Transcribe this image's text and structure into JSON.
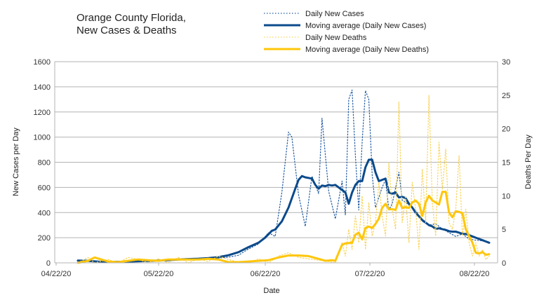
{
  "chart_data": {
    "type": "line",
    "title_lines": [
      "Orange County Florida,",
      "New Cases & Deaths"
    ],
    "xlabel": "Date",
    "ylabel_left": "New Cases per Day",
    "ylabel_right": "Deaths Per Day",
    "x_ticks": [
      "04/22/20",
      "05/22/20",
      "06/22/20",
      "07/22/20",
      "08/22/20"
    ],
    "ylim_left": [
      0,
      1600
    ],
    "y_ticks_left": [
      "0",
      "200",
      "400",
      "600",
      "800",
      "1000",
      "1200",
      "1400",
      "1600"
    ],
    "ylim_right": [
      0,
      30
    ],
    "y_ticks_right": [
      "0",
      "5",
      "10",
      "15",
      "20",
      "25",
      "30"
    ],
    "grid": "horizontal",
    "legend_position": "top",
    "series": [
      {
        "name": "Daily New Cases",
        "axis": "left",
        "style": "dotted",
        "color": "#1f5aa0",
        "points": [
          [
            0,
            18
          ],
          [
            3,
            22
          ],
          [
            6,
            12
          ],
          [
            9,
            10
          ],
          [
            12,
            8
          ],
          [
            15,
            12
          ],
          [
            18,
            10
          ],
          [
            21,
            14
          ],
          [
            24,
            16
          ],
          [
            27,
            22
          ],
          [
            30,
            25
          ],
          [
            33,
            28
          ],
          [
            36,
            30
          ],
          [
            39,
            32
          ],
          [
            42,
            38
          ],
          [
            45,
            45
          ],
          [
            48,
            60
          ],
          [
            51,
            110
          ],
          [
            54,
            150
          ],
          [
            57,
            240
          ],
          [
            59,
            210
          ],
          [
            61,
            560
          ],
          [
            63,
            1040
          ],
          [
            64,
            1000
          ],
          [
            66,
            540
          ],
          [
            68,
            290
          ],
          [
            70,
            690
          ],
          [
            72,
            550
          ],
          [
            73,
            1150
          ],
          [
            75,
            570
          ],
          [
            77,
            350
          ],
          [
            79,
            650
          ],
          [
            80,
            380
          ],
          [
            81,
            1300
          ],
          [
            82,
            1375
          ],
          [
            83,
            850
          ],
          [
            84,
            420
          ],
          [
            85,
            960
          ],
          [
            86,
            1370
          ],
          [
            87,
            1300
          ],
          [
            88,
            700
          ],
          [
            89,
            440
          ],
          [
            90,
            520
          ],
          [
            91,
            600
          ],
          [
            92,
            660
          ],
          [
            93,
            420
          ],
          [
            94,
            470
          ],
          [
            96,
            720
          ],
          [
            97,
            500
          ],
          [
            99,
            460
          ],
          [
            101,
            420
          ],
          [
            103,
            330
          ],
          [
            105,
            300
          ],
          [
            107,
            310
          ],
          [
            109,
            270
          ],
          [
            111,
            240
          ],
          [
            113,
            210
          ],
          [
            115,
            230
          ],
          [
            117,
            190
          ],
          [
            119,
            180
          ],
          [
            121,
            175
          ],
          [
            123,
            160
          ]
        ]
      },
      {
        "name": "Moving average (Daily New Cases)",
        "axis": "left",
        "style": "solid",
        "color": "#0b4a8b",
        "points": [
          [
            0,
            18
          ],
          [
            3,
            16
          ],
          [
            6,
            10
          ],
          [
            9,
            8
          ],
          [
            12,
            8
          ],
          [
            15,
            10
          ],
          [
            18,
            12
          ],
          [
            21,
            15
          ],
          [
            24,
            18
          ],
          [
            27,
            22
          ],
          [
            30,
            26
          ],
          [
            33,
            30
          ],
          [
            36,
            33
          ],
          [
            39,
            38
          ],
          [
            42,
            45
          ],
          [
            45,
            60
          ],
          [
            48,
            85
          ],
          [
            51,
            125
          ],
          [
            54,
            160
          ],
          [
            56,
            200
          ],
          [
            58,
            255
          ],
          [
            59,
            265
          ],
          [
            61,
            330
          ],
          [
            63,
            440
          ],
          [
            65,
            590
          ],
          [
            66,
            660
          ],
          [
            67,
            690
          ],
          [
            68,
            680
          ],
          [
            70,
            670
          ],
          [
            71,
            620
          ],
          [
            72,
            590
          ],
          [
            73,
            615
          ],
          [
            74,
            610
          ],
          [
            75,
            620
          ],
          [
            76,
            615
          ],
          [
            77,
            620
          ],
          [
            79,
            580
          ],
          [
            80,
            560
          ],
          [
            81,
            470
          ],
          [
            82,
            560
          ],
          [
            83,
            620
          ],
          [
            84,
            650
          ],
          [
            85,
            650
          ],
          [
            86,
            760
          ],
          [
            87,
            820
          ],
          [
            88,
            820
          ],
          [
            89,
            720
          ],
          [
            90,
            650
          ],
          [
            91,
            660
          ],
          [
            92,
            670
          ],
          [
            93,
            560
          ],
          [
            94,
            550
          ],
          [
            95,
            560
          ],
          [
            96,
            520
          ],
          [
            97,
            525
          ],
          [
            98,
            515
          ],
          [
            99,
            470
          ],
          [
            100,
            440
          ],
          [
            101,
            400
          ],
          [
            102,
            370
          ],
          [
            103,
            340
          ],
          [
            104,
            320
          ],
          [
            105,
            300
          ],
          [
            106,
            290
          ],
          [
            107,
            270
          ],
          [
            108,
            275
          ],
          [
            109,
            268
          ],
          [
            110,
            262
          ],
          [
            111,
            252
          ],
          [
            112,
            248
          ],
          [
            113,
            248
          ],
          [
            114,
            240
          ],
          [
            115,
            230
          ],
          [
            116,
            230
          ],
          [
            117,
            220
          ],
          [
            118,
            210
          ],
          [
            119,
            200
          ],
          [
            120,
            190
          ],
          [
            121,
            180
          ],
          [
            122,
            170
          ],
          [
            123,
            160
          ]
        ]
      },
      {
        "name": "Daily New Deaths",
        "axis": "right",
        "style": "dotted",
        "color": "#f8d35a",
        "points": [
          [
            0,
            0
          ],
          [
            3,
            0.8
          ],
          [
            5,
            0
          ],
          [
            9,
            0.5
          ],
          [
            12,
            0
          ],
          [
            15,
            0.8
          ],
          [
            18,
            0.5
          ],
          [
            21,
            0
          ],
          [
            24,
            0.6
          ],
          [
            27,
            0
          ],
          [
            30,
            0.8
          ],
          [
            33,
            0
          ],
          [
            36,
            0.6
          ],
          [
            39,
            0.2
          ],
          [
            42,
            1.0
          ],
          [
            45,
            0.5
          ],
          [
            48,
            0.1
          ],
          [
            51,
            0
          ],
          [
            54,
            0.6
          ],
          [
            57,
            0
          ],
          [
            60,
            1.0
          ],
          [
            63,
            1.5
          ],
          [
            66,
            0.8
          ],
          [
            69,
            0.6
          ],
          [
            72,
            0.4
          ],
          [
            75,
            0.2
          ],
          [
            77,
            0
          ],
          [
            79,
            3
          ],
          [
            80,
            1
          ],
          [
            81,
            5
          ],
          [
            82,
            2
          ],
          [
            83,
            7
          ],
          [
            84,
            3
          ],
          [
            85,
            10
          ],
          [
            86,
            2
          ],
          [
            87,
            9
          ],
          [
            88,
            4
          ],
          [
            89,
            6
          ],
          [
            90,
            12
          ],
          [
            91,
            7
          ],
          [
            92,
            4
          ],
          [
            93,
            15
          ],
          [
            94,
            8
          ],
          [
            95,
            5
          ],
          [
            96,
            24
          ],
          [
            97,
            6
          ],
          [
            98,
            10
          ],
          [
            99,
            3
          ],
          [
            100,
            12
          ],
          [
            101,
            8
          ],
          [
            102,
            2
          ],
          [
            103,
            14
          ],
          [
            104,
            6
          ],
          [
            105,
            25
          ],
          [
            106,
            9
          ],
          [
            107,
            4
          ],
          [
            108,
            18
          ],
          [
            109,
            11
          ],
          [
            110,
            17
          ],
          [
            111,
            6
          ],
          [
            112,
            5
          ],
          [
            113,
            8
          ],
          [
            114,
            16
          ],
          [
            115,
            4
          ],
          [
            116,
            8
          ],
          [
            117,
            3
          ],
          [
            118,
            1
          ],
          [
            119,
            3
          ],
          [
            120,
            1
          ],
          [
            121,
            2
          ],
          [
            122,
            0.5
          ],
          [
            123,
            1
          ]
        ]
      },
      {
        "name": "Moving average (Daily New Deaths)",
        "axis": "right",
        "style": "solid",
        "color": "#ffc60a",
        "points": [
          [
            0,
            0
          ],
          [
            3,
            0.3
          ],
          [
            5,
            0.8
          ],
          [
            7,
            0.5
          ],
          [
            9,
            0.2
          ],
          [
            12,
            0.1
          ],
          [
            15,
            0.3
          ],
          [
            18,
            0.5
          ],
          [
            21,
            0.4
          ],
          [
            24,
            0.3
          ],
          [
            27,
            0.5
          ],
          [
            30,
            0.5
          ],
          [
            33,
            0.5
          ],
          [
            36,
            0.5
          ],
          [
            39,
            0.6
          ],
          [
            42,
            0.5
          ],
          [
            45,
            0.1
          ],
          [
            48,
            0.1
          ],
          [
            51,
            0.2
          ],
          [
            54,
            0.3
          ],
          [
            57,
            0.4
          ],
          [
            60,
            0.8
          ],
          [
            63,
            1.1
          ],
          [
            66,
            1.1
          ],
          [
            69,
            1.0
          ],
          [
            72,
            0.6
          ],
          [
            74,
            0.3
          ],
          [
            76,
            0.4
          ],
          [
            77,
            0.3
          ],
          [
            78,
            1.5
          ],
          [
            79,
            2.7
          ],
          [
            80,
            2.9
          ],
          [
            82,
            3.0
          ],
          [
            83,
            4.2
          ],
          [
            84,
            4.5
          ],
          [
            85,
            3.5
          ],
          [
            86,
            5.2
          ],
          [
            87,
            5.4
          ],
          [
            88,
            5.2
          ],
          [
            89,
            5.8
          ],
          [
            90,
            6.6
          ],
          [
            91,
            8.2
          ],
          [
            92,
            8.8
          ],
          [
            93,
            8.0
          ],
          [
            94,
            8.0
          ],
          [
            95,
            7.9
          ],
          [
            96,
            9.3
          ],
          [
            97,
            8.2
          ],
          [
            98,
            8.3
          ],
          [
            99,
            8.2
          ],
          [
            100,
            9.0
          ],
          [
            101,
            9.3
          ],
          [
            102,
            8.8
          ],
          [
            103,
            7.0
          ],
          [
            104,
            9.0
          ],
          [
            105,
            10.0
          ],
          [
            106,
            9.3
          ],
          [
            107,
            9.0
          ],
          [
            108,
            8.7
          ],
          [
            109,
            10.6
          ],
          [
            110,
            10.6
          ],
          [
            111,
            7.5
          ],
          [
            112,
            6.8
          ],
          [
            113,
            7.7
          ],
          [
            114,
            7.6
          ],
          [
            115,
            7.4
          ],
          [
            116,
            5.0
          ],
          [
            117,
            4.0
          ],
          [
            118,
            3.0
          ],
          [
            119,
            1.5
          ],
          [
            120,
            1.4
          ],
          [
            121,
            1.6
          ],
          [
            122,
            1.2
          ],
          [
            123,
            1.3
          ]
        ]
      }
    ]
  }
}
